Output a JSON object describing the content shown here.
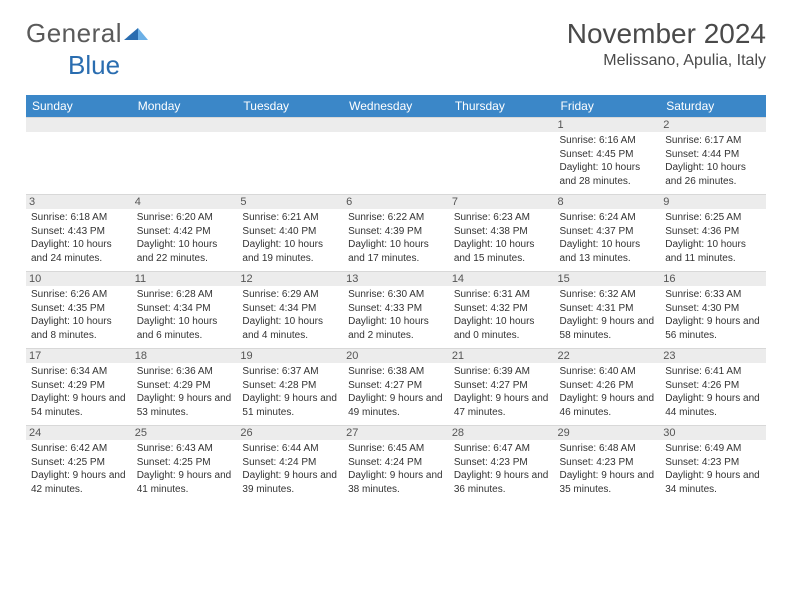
{
  "logo": {
    "word1": "General",
    "word2": "Blue"
  },
  "title": "November 2024",
  "location": "Melissano, Apulia, Italy",
  "colors": {
    "header_bg": "#3b87c8",
    "header_text": "#ffffff",
    "divider": "#d8d8d8",
    "daynum_bg": "#ececec",
    "logo_gray": "#5a5a5a",
    "logo_blue": "#2a6db0"
  },
  "day_headers": [
    "Sunday",
    "Monday",
    "Tuesday",
    "Wednesday",
    "Thursday",
    "Friday",
    "Saturday"
  ],
  "weeks": [
    [
      null,
      null,
      null,
      null,
      null,
      {
        "n": "1",
        "sr": "6:16 AM",
        "ss": "4:45 PM",
        "dl": "10 hours and 28 minutes."
      },
      {
        "n": "2",
        "sr": "6:17 AM",
        "ss": "4:44 PM",
        "dl": "10 hours and 26 minutes."
      }
    ],
    [
      {
        "n": "3",
        "sr": "6:18 AM",
        "ss": "4:43 PM",
        "dl": "10 hours and 24 minutes."
      },
      {
        "n": "4",
        "sr": "6:20 AM",
        "ss": "4:42 PM",
        "dl": "10 hours and 22 minutes."
      },
      {
        "n": "5",
        "sr": "6:21 AM",
        "ss": "4:40 PM",
        "dl": "10 hours and 19 minutes."
      },
      {
        "n": "6",
        "sr": "6:22 AM",
        "ss": "4:39 PM",
        "dl": "10 hours and 17 minutes."
      },
      {
        "n": "7",
        "sr": "6:23 AM",
        "ss": "4:38 PM",
        "dl": "10 hours and 15 minutes."
      },
      {
        "n": "8",
        "sr": "6:24 AM",
        "ss": "4:37 PM",
        "dl": "10 hours and 13 minutes."
      },
      {
        "n": "9",
        "sr": "6:25 AM",
        "ss": "4:36 PM",
        "dl": "10 hours and 11 minutes."
      }
    ],
    [
      {
        "n": "10",
        "sr": "6:26 AM",
        "ss": "4:35 PM",
        "dl": "10 hours and 8 minutes."
      },
      {
        "n": "11",
        "sr": "6:28 AM",
        "ss": "4:34 PM",
        "dl": "10 hours and 6 minutes."
      },
      {
        "n": "12",
        "sr": "6:29 AM",
        "ss": "4:34 PM",
        "dl": "10 hours and 4 minutes."
      },
      {
        "n": "13",
        "sr": "6:30 AM",
        "ss": "4:33 PM",
        "dl": "10 hours and 2 minutes."
      },
      {
        "n": "14",
        "sr": "6:31 AM",
        "ss": "4:32 PM",
        "dl": "10 hours and 0 minutes."
      },
      {
        "n": "15",
        "sr": "6:32 AM",
        "ss": "4:31 PM",
        "dl": "9 hours and 58 minutes."
      },
      {
        "n": "16",
        "sr": "6:33 AM",
        "ss": "4:30 PM",
        "dl": "9 hours and 56 minutes."
      }
    ],
    [
      {
        "n": "17",
        "sr": "6:34 AM",
        "ss": "4:29 PM",
        "dl": "9 hours and 54 minutes."
      },
      {
        "n": "18",
        "sr": "6:36 AM",
        "ss": "4:29 PM",
        "dl": "9 hours and 53 minutes."
      },
      {
        "n": "19",
        "sr": "6:37 AM",
        "ss": "4:28 PM",
        "dl": "9 hours and 51 minutes."
      },
      {
        "n": "20",
        "sr": "6:38 AM",
        "ss": "4:27 PM",
        "dl": "9 hours and 49 minutes."
      },
      {
        "n": "21",
        "sr": "6:39 AM",
        "ss": "4:27 PM",
        "dl": "9 hours and 47 minutes."
      },
      {
        "n": "22",
        "sr": "6:40 AM",
        "ss": "4:26 PM",
        "dl": "9 hours and 46 minutes."
      },
      {
        "n": "23",
        "sr": "6:41 AM",
        "ss": "4:26 PM",
        "dl": "9 hours and 44 minutes."
      }
    ],
    [
      {
        "n": "24",
        "sr": "6:42 AM",
        "ss": "4:25 PM",
        "dl": "9 hours and 42 minutes."
      },
      {
        "n": "25",
        "sr": "6:43 AM",
        "ss": "4:25 PM",
        "dl": "9 hours and 41 minutes."
      },
      {
        "n": "26",
        "sr": "6:44 AM",
        "ss": "4:24 PM",
        "dl": "9 hours and 39 minutes."
      },
      {
        "n": "27",
        "sr": "6:45 AM",
        "ss": "4:24 PM",
        "dl": "9 hours and 38 minutes."
      },
      {
        "n": "28",
        "sr": "6:47 AM",
        "ss": "4:23 PM",
        "dl": "9 hours and 36 minutes."
      },
      {
        "n": "29",
        "sr": "6:48 AM",
        "ss": "4:23 PM",
        "dl": "9 hours and 35 minutes."
      },
      {
        "n": "30",
        "sr": "6:49 AM",
        "ss": "4:23 PM",
        "dl": "9 hours and 34 minutes."
      }
    ]
  ],
  "labels": {
    "sunrise": "Sunrise:",
    "sunset": "Sunset:",
    "daylight": "Daylight:"
  }
}
